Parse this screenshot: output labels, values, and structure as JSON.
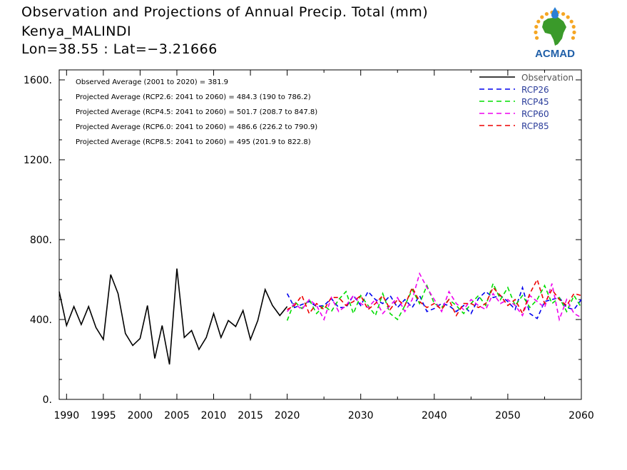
{
  "header": {
    "title": "Observation and Projections of Annual Precip. Total (mm)",
    "station": "Kenya_MALINDI",
    "coords": "Lon=38.55 : Lat=−3.21666"
  },
  "logo": {
    "text": "ACMAD",
    "colors": {
      "africa": "#3a9a2a",
      "sun": "#f5a623",
      "drop": "#2a7fd4",
      "text": "#1f5fa8"
    }
  },
  "annotations": [
    "Observed Average (2001 to 2020) = 381.9",
    "Projected Average (RCP2.6: 2041 to 2060) = 484.3 (190 to 786.2)",
    "Projected Average (RCP4.5: 2041 to 2060) = 501.7 (208.7 to 847.8)",
    "Projected Average (RCP6.0: 2041 to 2060) = 486.6 (226.2 to 790.9)",
    "Projected Average (RCP8.5: 2041 to 2060) = 495 (201.9 to 822.8)"
  ],
  "chart_data": {
    "type": "line",
    "xlim": [
      1989,
      2060
    ],
    "ylim": [
      0,
      1650
    ],
    "yticks": [
      0,
      400,
      800,
      1200,
      1600
    ],
    "ytick_labels": [
      "0.",
      "400.",
      "800.",
      "1200.",
      "1600."
    ],
    "xticks": [
      1990,
      1995,
      2000,
      2005,
      2010,
      2015,
      2020,
      2030,
      2040,
      2050,
      2060
    ],
    "xtick_labels": [
      "1990",
      "1995",
      "2000",
      "2005",
      "2010",
      "2015",
      "2020",
      "2030",
      "2040",
      "2050",
      "2060"
    ],
    "legend_position": "top-right",
    "series": [
      {
        "name": "Observation",
        "color": "#000000",
        "dashed": false,
        "x": [
          1989,
          1990,
          1991,
          1992,
          1993,
          1994,
          1995,
          1996,
          1997,
          1998,
          1999,
          2000,
          2001,
          2002,
          2003,
          2004,
          2005,
          2006,
          2007,
          2008,
          2009,
          2010,
          2011,
          2012,
          2013,
          2014,
          2015,
          2016,
          2017,
          2018,
          2019,
          2020
        ],
        "y": [
          540,
          370,
          465,
          375,
          465,
          360,
          300,
          625,
          530,
          330,
          270,
          305,
          470,
          205,
          370,
          175,
          655,
          310,
          345,
          250,
          310,
          430,
          310,
          395,
          365,
          445,
          300,
          395,
          550,
          470,
          420,
          465
        ]
      },
      {
        "name": "RCP26",
        "color": "#0000ee",
        "dashed": true,
        "x": [
          2020,
          2021,
          2022,
          2023,
          2024,
          2025,
          2026,
          2027,
          2028,
          2029,
          2030,
          2031,
          2032,
          2033,
          2034,
          2035,
          2036,
          2037,
          2038,
          2039,
          2040,
          2041,
          2042,
          2043,
          2044,
          2045,
          2046,
          2047,
          2048,
          2049,
          2050,
          2051,
          2052,
          2053,
          2054,
          2055,
          2056,
          2057,
          2058,
          2059,
          2060
        ],
        "y": [
          530,
          460,
          475,
          490,
          465,
          470,
          505,
          460,
          460,
          520,
          470,
          540,
          500,
          480,
          520,
          460,
          500,
          460,
          520,
          440,
          455,
          480,
          470,
          440,
          470,
          430,
          505,
          540,
          510,
          520,
          490,
          450,
          560,
          430,
          405,
          490,
          500,
          510,
          460,
          450,
          500
        ]
      },
      {
        "name": "RCP45",
        "color": "#00dd00",
        "dashed": true,
        "x": [
          2020,
          2021,
          2022,
          2023,
          2024,
          2025,
          2026,
          2027,
          2028,
          2029,
          2030,
          2031,
          2032,
          2033,
          2034,
          2035,
          2036,
          2037,
          2038,
          2039,
          2040,
          2041,
          2042,
          2043,
          2044,
          2045,
          2046,
          2047,
          2048,
          2049,
          2050,
          2051,
          2052,
          2053,
          2054,
          2055,
          2056,
          2057,
          2058,
          2059,
          2060
        ],
        "y": [
          395,
          490,
          455,
          500,
          430,
          470,
          440,
          500,
          540,
          430,
          520,
          470,
          420,
          530,
          430,
          400,
          470,
          550,
          480,
          570,
          480,
          460,
          500,
          470,
          430,
          480,
          520,
          470,
          580,
          500,
          560,
          470,
          520,
          460,
          500,
          570,
          480,
          510,
          440,
          520,
          460
        ]
      },
      {
        "name": "RCP60",
        "color": "#ee00ee",
        "dashed": true,
        "x": [
          2020,
          2021,
          2022,
          2023,
          2024,
          2025,
          2026,
          2027,
          2028,
          2029,
          2030,
          2031,
          2032,
          2033,
          2034,
          2035,
          2036,
          2037,
          2038,
          2039,
          2040,
          2041,
          2042,
          2043,
          2044,
          2045,
          2046,
          2047,
          2048,
          2049,
          2050,
          2051,
          2052,
          2053,
          2054,
          2055,
          2056,
          2057,
          2058,
          2059,
          2060
        ],
        "y": [
          440,
          480,
          450,
          500,
          470,
          400,
          510,
          440,
          470,
          520,
          480,
          460,
          500,
          430,
          470,
          510,
          440,
          500,
          630,
          560,
          500,
          440,
          540,
          480,
          450,
          500,
          470,
          450,
          530,
          480,
          500,
          470,
          420,
          520,
          490,
          460,
          580,
          400,
          500,
          430,
          410
        ]
      },
      {
        "name": "RCP85",
        "color": "#ee0000",
        "dashed": true,
        "x": [
          2020,
          2021,
          2022,
          2023,
          2024,
          2025,
          2026,
          2027,
          2028,
          2029,
          2030,
          2031,
          2032,
          2033,
          2034,
          2035,
          2036,
          2037,
          2038,
          2039,
          2040,
          2041,
          2042,
          2043,
          2044,
          2045,
          2046,
          2047,
          2048,
          2049,
          2050,
          2051,
          2052,
          2053,
          2054,
          2055,
          2056,
          2057,
          2058,
          2059,
          2060
        ],
        "y": [
          450,
          470,
          520,
          430,
          480,
          450,
          510,
          510,
          470,
          490,
          520,
          450,
          480,
          520,
          450,
          500,
          470,
          560,
          490,
          460,
          480,
          450,
          500,
          420,
          480,
          480,
          460,
          480,
          560,
          520,
          470,
          500,
          430,
          530,
          600,
          480,
          550,
          500,
          470,
          530,
          520
        ]
      }
    ]
  }
}
